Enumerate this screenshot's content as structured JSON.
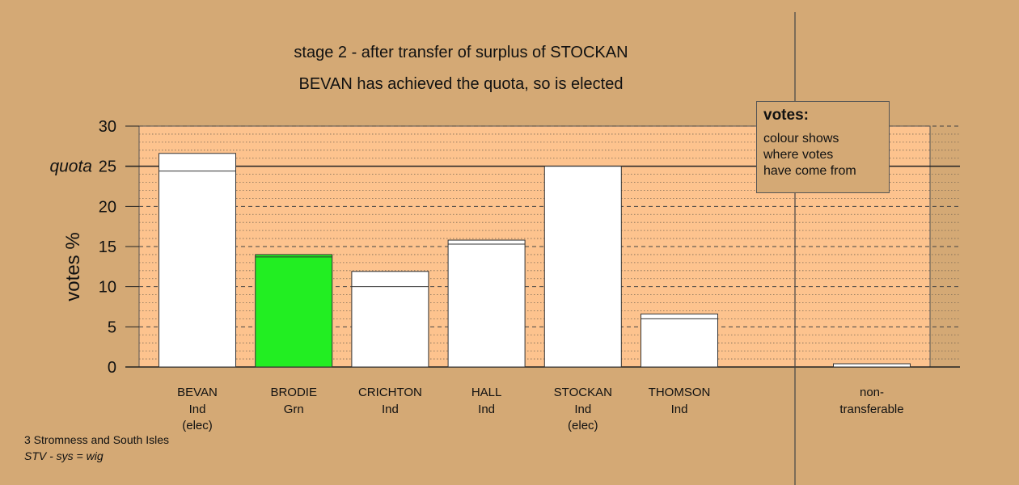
{
  "chart_data": {
    "type": "bar",
    "title_line1": "stage 2 - after transfer of surplus of STOCKAN",
    "title_line2": "BEVAN has achieved the quota, so is elected",
    "ylabel": "votes %",
    "ylim": [
      0,
      30
    ],
    "yticks": [
      "0",
      "5",
      "10",
      "15",
      "20",
      "25",
      "30"
    ],
    "quota_label": "quota",
    "quota_value": 25,
    "categories": [
      {
        "name": "BEVAN",
        "party": "Ind",
        "status": "(elec)",
        "base": 24.4,
        "total": 26.6,
        "color": "#ffffff"
      },
      {
        "name": "BRODIE",
        "party": "Grn",
        "status": "",
        "base": 13.7,
        "total": 14.0,
        "color": "#22ee22"
      },
      {
        "name": "CRICHTON",
        "party": "Ind",
        "status": "",
        "base": 10.0,
        "total": 11.9,
        "color": "#ffffff"
      },
      {
        "name": "HALL",
        "party": "Ind",
        "status": "",
        "base": 15.3,
        "total": 15.8,
        "color": "#ffffff"
      },
      {
        "name": "STOCKAN",
        "party": "Ind",
        "status": "(elec)",
        "base": 25.0,
        "total": 25.0,
        "color": "#ffffff"
      },
      {
        "name": "THOMSON",
        "party": "Ind",
        "status": "",
        "base": 6.0,
        "total": 6.6,
        "color": "#ffffff"
      }
    ],
    "nontransferable": {
      "label_line1": "non-",
      "label_line2": "transferable",
      "value": 0.4
    },
    "grid": true
  },
  "legend": {
    "title": "votes:",
    "line1": "colour shows",
    "line2": "where votes",
    "line3": "have come from"
  },
  "footer": {
    "line1": "3 Stromness and South Isles",
    "line2": "STV - sys = wig"
  },
  "colors": {
    "background": "#d4a975",
    "plot_area": "#fdc38e",
    "bar": "#ffffff",
    "green": "#22ee22"
  }
}
